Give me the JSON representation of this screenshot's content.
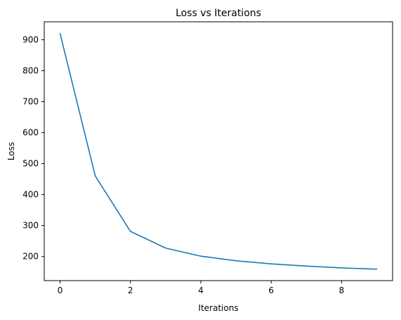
{
  "chart_data": {
    "type": "line",
    "title": "Loss vs Iterations",
    "xlabel": "Iterations",
    "ylabel": "Loss",
    "xlim": [
      -0.45,
      9.45
    ],
    "ylim": [
      122,
      958
    ],
    "xticks": [
      0,
      2,
      4,
      6,
      8
    ],
    "yticks": [
      200,
      300,
      400,
      500,
      600,
      700,
      800,
      900
    ],
    "grid": false,
    "series": [
      {
        "color": "#1f77b4",
        "x": [
          0,
          1,
          2,
          3,
          4,
          5,
          6,
          7,
          8,
          9
        ],
        "y": [
          920,
          460,
          281,
          227,
          201,
          186,
          176,
          169,
          163,
          159
        ]
      }
    ]
  }
}
